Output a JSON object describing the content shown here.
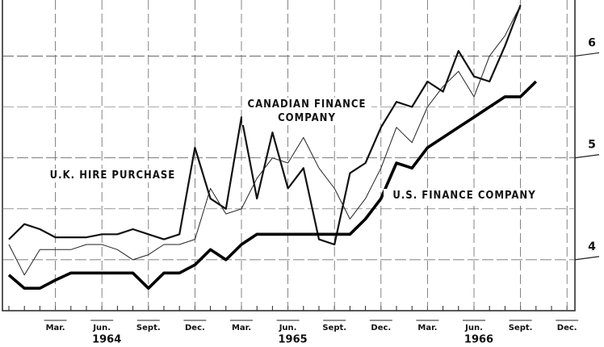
{
  "chart_data": {
    "type": "line",
    "categories": [
      null,
      null,
      null,
      "Mar.",
      null,
      null,
      "Jun.",
      null,
      null,
      "Sept.",
      null,
      null,
      "Dec.",
      null,
      null,
      "Mar.",
      null,
      null,
      "Jun.",
      null,
      null,
      "Sept.",
      null,
      null,
      "Dec.",
      null,
      null,
      "Mar.",
      null,
      null,
      "Jun.",
      null,
      null,
      "Sept.",
      null,
      null,
      "Dec."
    ],
    "year_labels": [
      "1964",
      "1965",
      "1966"
    ],
    "series": [
      {
        "name": "U.K. HIRE PURCHASE",
        "color": "#111111",
        "values": [
          4.2,
          4.35,
          4.3,
          4.22,
          4.22,
          4.22,
          4.25,
          4.25,
          4.3,
          4.25,
          4.2,
          4.25,
          5.1,
          4.6,
          4.5,
          5.4,
          4.6,
          5.25,
          4.7,
          4.9,
          4.2,
          4.15,
          4.85,
          4.95,
          5.3,
          5.55,
          5.5,
          5.75,
          5.65,
          6.05,
          5.8,
          5.75,
          6.1,
          6.5,
          null,
          null,
          null
        ]
      },
      {
        "name": "CANADIAN FINANCE COMPANY",
        "color": "#222222",
        "values": [
          4.15,
          3.85,
          4.1,
          4.1,
          4.1,
          4.15,
          4.15,
          4.1,
          4.0,
          4.05,
          4.15,
          4.15,
          4.2,
          4.7,
          4.45,
          4.5,
          4.8,
          5.0,
          4.95,
          5.2,
          4.9,
          4.7,
          4.4,
          4.6,
          4.9,
          5.3,
          5.15,
          5.5,
          5.7,
          5.85,
          5.6,
          6.0,
          6.2,
          6.5,
          null,
          null,
          null
        ]
      },
      {
        "name": "U.S. FINANCE COMPANY",
        "color": "#000000",
        "values": [
          3.85,
          3.72,
          3.72,
          3.8,
          3.87,
          3.87,
          3.87,
          3.87,
          3.87,
          3.72,
          3.87,
          3.87,
          3.95,
          4.1,
          4.0,
          4.15,
          4.25,
          4.25,
          4.25,
          4.25,
          4.25,
          4.25,
          4.25,
          4.4,
          4.6,
          4.95,
          4.9,
          5.1,
          5.2,
          5.3,
          5.4,
          5.5,
          5.6,
          5.6,
          5.75,
          null,
          null
        ]
      }
    ],
    "ylim": [
      3.5,
      6.55
    ],
    "yticks": [
      4,
      5,
      6
    ],
    "minor_yticks": [
      4.5,
      5.5
    ],
    "grid": true
  }
}
